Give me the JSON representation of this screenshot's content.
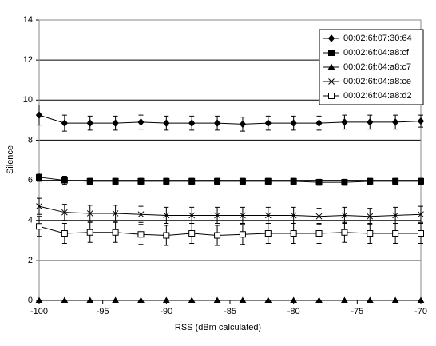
{
  "chart_data": {
    "type": "line",
    "x_label": "RSS (dBm calculated)",
    "y_label": "Silence",
    "x": [
      -100,
      -98,
      -96,
      -94,
      -92,
      -90,
      -88,
      -86,
      -84,
      -82,
      -80,
      -78,
      -76,
      -74,
      -72,
      -70
    ],
    "xlim": [
      -100,
      -70
    ],
    "xticks": [
      -100,
      -95,
      -90,
      -85,
      -80,
      -75,
      -70
    ],
    "ylim": [
      0,
      14
    ],
    "yticks": [
      0,
      2,
      4,
      6,
      8,
      10,
      12,
      14
    ],
    "grid": true,
    "legend": "top-right",
    "series": [
      {
        "name": "00:02:6f:07:30:64",
        "color": "#000000",
        "marker": "diamond",
        "values": [
          9.25,
          8.85,
          8.85,
          8.85,
          8.9,
          8.85,
          8.85,
          8.85,
          8.8,
          8.85,
          8.85,
          8.85,
          8.9,
          8.9,
          8.9,
          8.95
        ],
        "errors": [
          0.5,
          0.4,
          0.35,
          0.35,
          0.35,
          0.35,
          0.35,
          0.35,
          0.35,
          0.35,
          0.35,
          0.35,
          0.35,
          0.35,
          0.35,
          0.3
        ]
      },
      {
        "name": "00:02:6f:04:a8:cf",
        "color": "#000000",
        "marker": "square",
        "values": [
          6.15,
          6.0,
          5.95,
          5.95,
          5.95,
          5.95,
          5.95,
          5.95,
          5.95,
          5.95,
          5.95,
          5.9,
          5.9,
          5.95,
          5.95,
          5.95
        ],
        "errors": [
          0.2,
          0.2,
          0.15,
          0.15,
          0.15,
          0.15,
          0.15,
          0.15,
          0.15,
          0.15,
          0.15,
          0.15,
          0.15,
          0.15,
          0.15,
          0.15
        ]
      },
      {
        "name": "00:02:6f:04:a8:c7",
        "color": "#000000",
        "marker": "triangle",
        "values": [
          0,
          0,
          0,
          0,
          0,
          0,
          0,
          0,
          0,
          0,
          0,
          0,
          0,
          0,
          0,
          0
        ],
        "errors": [
          0,
          0,
          0,
          0,
          0,
          0,
          0,
          0,
          0,
          0,
          0,
          0,
          0,
          0,
          0,
          0
        ]
      },
      {
        "name": "00:02:6f:04:a8:ce",
        "color": "#000000",
        "marker": "x",
        "values": [
          4.7,
          4.4,
          4.35,
          4.35,
          4.3,
          4.25,
          4.25,
          4.25,
          4.25,
          4.25,
          4.25,
          4.2,
          4.25,
          4.2,
          4.25,
          4.3
        ],
        "errors": [
          0.4,
          0.4,
          0.4,
          0.4,
          0.4,
          0.4,
          0.4,
          0.4,
          0.4,
          0.4,
          0.4,
          0.4,
          0.4,
          0.4,
          0.4,
          0.4
        ]
      },
      {
        "name": "00:02:6f:04:a8:d2",
        "color": "#000000",
        "marker": "square-open",
        "values": [
          3.7,
          3.35,
          3.4,
          3.4,
          3.3,
          3.25,
          3.35,
          3.25,
          3.3,
          3.35,
          3.35,
          3.35,
          3.4,
          3.35,
          3.35,
          3.35
        ],
        "errors": [
          0.5,
          0.5,
          0.5,
          0.5,
          0.5,
          0.5,
          0.5,
          0.5,
          0.5,
          0.5,
          0.5,
          0.5,
          0.5,
          0.5,
          0.5,
          0.5
        ]
      }
    ]
  }
}
